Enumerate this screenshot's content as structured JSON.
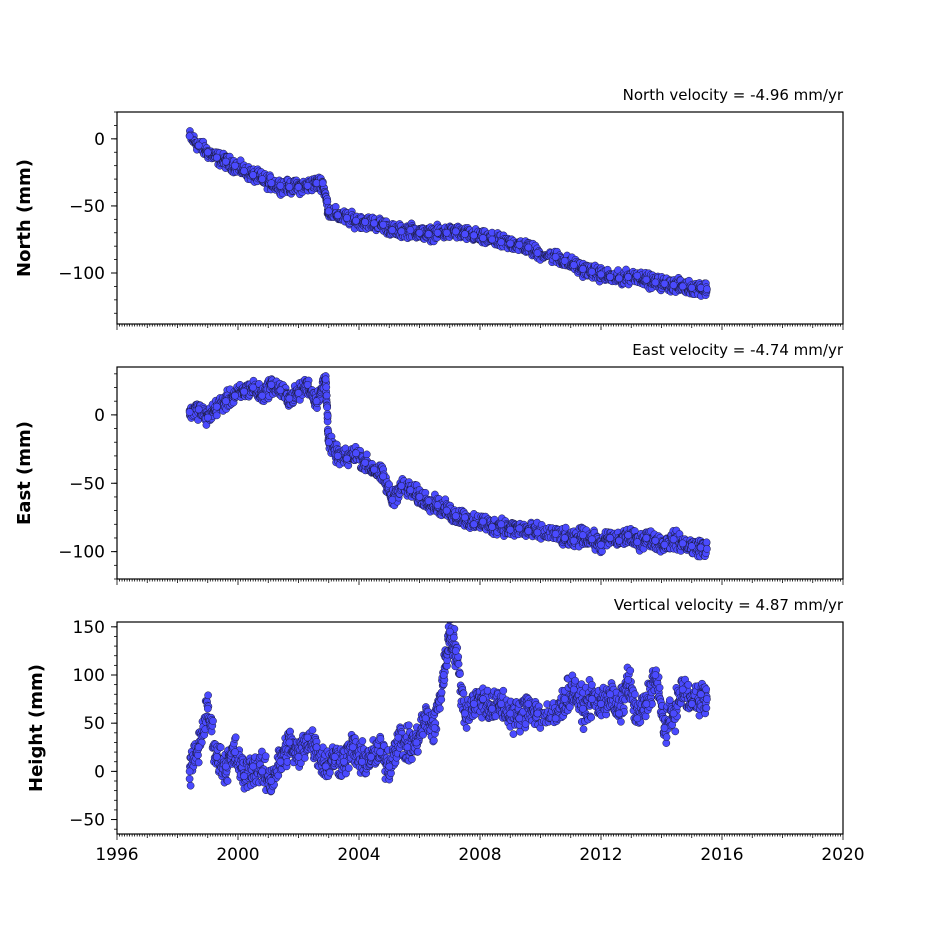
{
  "figure": {
    "x_ticks": [
      "1996",
      "2000",
      "2004",
      "2008",
      "2012",
      "2016",
      "2020"
    ],
    "marker_fill": "#4a4aff",
    "marker_edge": "#1a1a3a"
  },
  "chart_data": [
    {
      "type": "scatter",
      "title": "North velocity = -4.96 mm/yr",
      "ylabel": "North (mm)",
      "xlim": [
        1996,
        2020
      ],
      "ylim": [
        -138,
        20
      ],
      "yticks": [
        "0",
        "−50",
        "−100"
      ],
      "ytick_values": [
        0,
        -50,
        -100
      ],
      "series": [
        {
          "x": [
            1998.4,
            1998.7,
            1999.0,
            1999.3,
            1999.6,
            1999.9,
            2000.2,
            2000.5,
            2000.8,
            2001.1,
            2001.4,
            2001.7,
            2002.0,
            2002.3,
            2002.6,
            2002.8,
            2003.0,
            2003.3,
            2003.6,
            2003.9,
            2004.2,
            2004.5,
            2004.8,
            2005.1,
            2005.4,
            2005.7,
            2006.0,
            2006.3,
            2006.6,
            2006.9,
            2007.2,
            2007.5,
            2007.8,
            2008.1,
            2008.4,
            2008.7,
            2009.0,
            2009.3,
            2009.6,
            2009.9,
            2010.5,
            2010.8,
            2011.1,
            2011.4,
            2011.7,
            2012.0,
            2012.3,
            2012.6,
            2012.9,
            2013.2,
            2013.5,
            2013.8,
            2014.1,
            2014.4,
            2014.7,
            2015.0,
            2015.3,
            2015.5
          ],
          "y": [
            2,
            -5,
            -10,
            -14,
            -17,
            -20,
            -24,
            -27,
            -30,
            -33,
            -35,
            -36,
            -36,
            -35,
            -33,
            -33,
            -54,
            -57,
            -59,
            -61,
            -62,
            -63,
            -64,
            -68,
            -69,
            -68,
            -70,
            -71,
            -70,
            -70,
            -69,
            -71,
            -72,
            -74,
            -75,
            -77,
            -78,
            -79,
            -81,
            -85,
            -88,
            -91,
            -94,
            -97,
            -99,
            -101,
            -103,
            -104,
            -103,
            -102,
            -105,
            -107,
            -108,
            -109,
            -110,
            -111,
            -111,
            -112
          ]
        }
      ]
    },
    {
      "type": "scatter",
      "title": "East velocity = -4.74 mm/yr",
      "ylabel": "East (mm)",
      "xlim": [
        1996,
        2020
      ],
      "ylim": [
        -120,
        35
      ],
      "yticks": [
        "0",
        "−50",
        "−100"
      ],
      "ytick_values": [
        0,
        -50,
        -100
      ],
      "series": [
        {
          "x": [
            1998.4,
            1998.7,
            1999.0,
            1999.3,
            1999.6,
            1999.9,
            2000.2,
            2000.5,
            2000.8,
            2001.1,
            2001.4,
            2001.7,
            2002.0,
            2002.3,
            2002.6,
            2002.9,
            2003.0,
            2003.3,
            2003.6,
            2003.9,
            2004.2,
            2004.5,
            2004.8,
            2005.1,
            2005.4,
            2005.7,
            2006.0,
            2006.3,
            2006.6,
            2006.9,
            2007.2,
            2007.5,
            2007.8,
            2008.1,
            2008.4,
            2008.7,
            2009.0,
            2009.3,
            2009.6,
            2009.9,
            2010.5,
            2010.8,
            2011.1,
            2011.4,
            2011.7,
            2012.0,
            2012.3,
            2012.6,
            2012.9,
            2013.2,
            2013.5,
            2013.8,
            2014.1,
            2014.4,
            2014.7,
            2015.0,
            2015.3,
            2015.5
          ],
          "y": [
            2,
            4,
            -2,
            6,
            10,
            14,
            17,
            20,
            14,
            22,
            18,
            12,
            16,
            22,
            10,
            26,
            -20,
            -30,
            -32,
            -28,
            -35,
            -40,
            -45,
            -62,
            -52,
            -55,
            -60,
            -63,
            -66,
            -70,
            -74,
            -75,
            -80,
            -78,
            -82,
            -80,
            -84,
            -83,
            -85,
            -86,
            -87,
            -90,
            -92,
            -88,
            -91,
            -95,
            -90,
            -92,
            -88,
            -93,
            -90,
            -92,
            -95,
            -91,
            -94,
            -96,
            -97,
            -98
          ]
        }
      ]
    },
    {
      "type": "scatter",
      "title": "Vertical velocity = 4.87 mm/yr",
      "ylabel": "Height (mm)",
      "xlim": [
        1996,
        2020
      ],
      "ylim": [
        -65,
        155
      ],
      "yticks": [
        "150",
        "100",
        "50",
        "0",
        "−50"
      ],
      "ytick_values": [
        150,
        100,
        50,
        0,
        -50
      ],
      "series": [
        {
          "x": [
            1998.4,
            1998.7,
            1999.0,
            1999.3,
            1999.6,
            1999.9,
            2000.2,
            2000.5,
            2000.8,
            2001.1,
            2001.4,
            2001.7,
            2002.0,
            2002.3,
            2002.6,
            2002.9,
            2003.2,
            2003.5,
            2003.8,
            2004.1,
            2004.4,
            2004.7,
            2005.0,
            2005.3,
            2005.6,
            2005.9,
            2006.2,
            2006.5,
            2006.8,
            2007.0,
            2007.2,
            2007.5,
            2007.8,
            2008.1,
            2008.4,
            2008.7,
            2009.0,
            2009.3,
            2009.6,
            2009.9,
            2010.5,
            2010.8,
            2011.1,
            2011.4,
            2011.7,
            2012.0,
            2012.3,
            2012.6,
            2012.9,
            2013.2,
            2013.5,
            2013.8,
            2014.1,
            2014.4,
            2014.7,
            2015.0,
            2015.3,
            2015.5
          ],
          "y": [
            0,
            25,
            65,
            15,
            5,
            20,
            -5,
            5,
            0,
            -10,
            10,
            30,
            15,
            35,
            25,
            5,
            15,
            10,
            25,
            10,
            15,
            20,
            5,
            35,
            25,
            30,
            55,
            45,
            100,
            145,
            125,
            60,
            70,
            75,
            65,
            70,
            60,
            55,
            70,
            60,
            55,
            75,
            85,
            65,
            75,
            70,
            80,
            60,
            95,
            55,
            70,
            100,
            45,
            60,
            85,
            70,
            80,
            75
          ]
        }
      ]
    }
  ]
}
